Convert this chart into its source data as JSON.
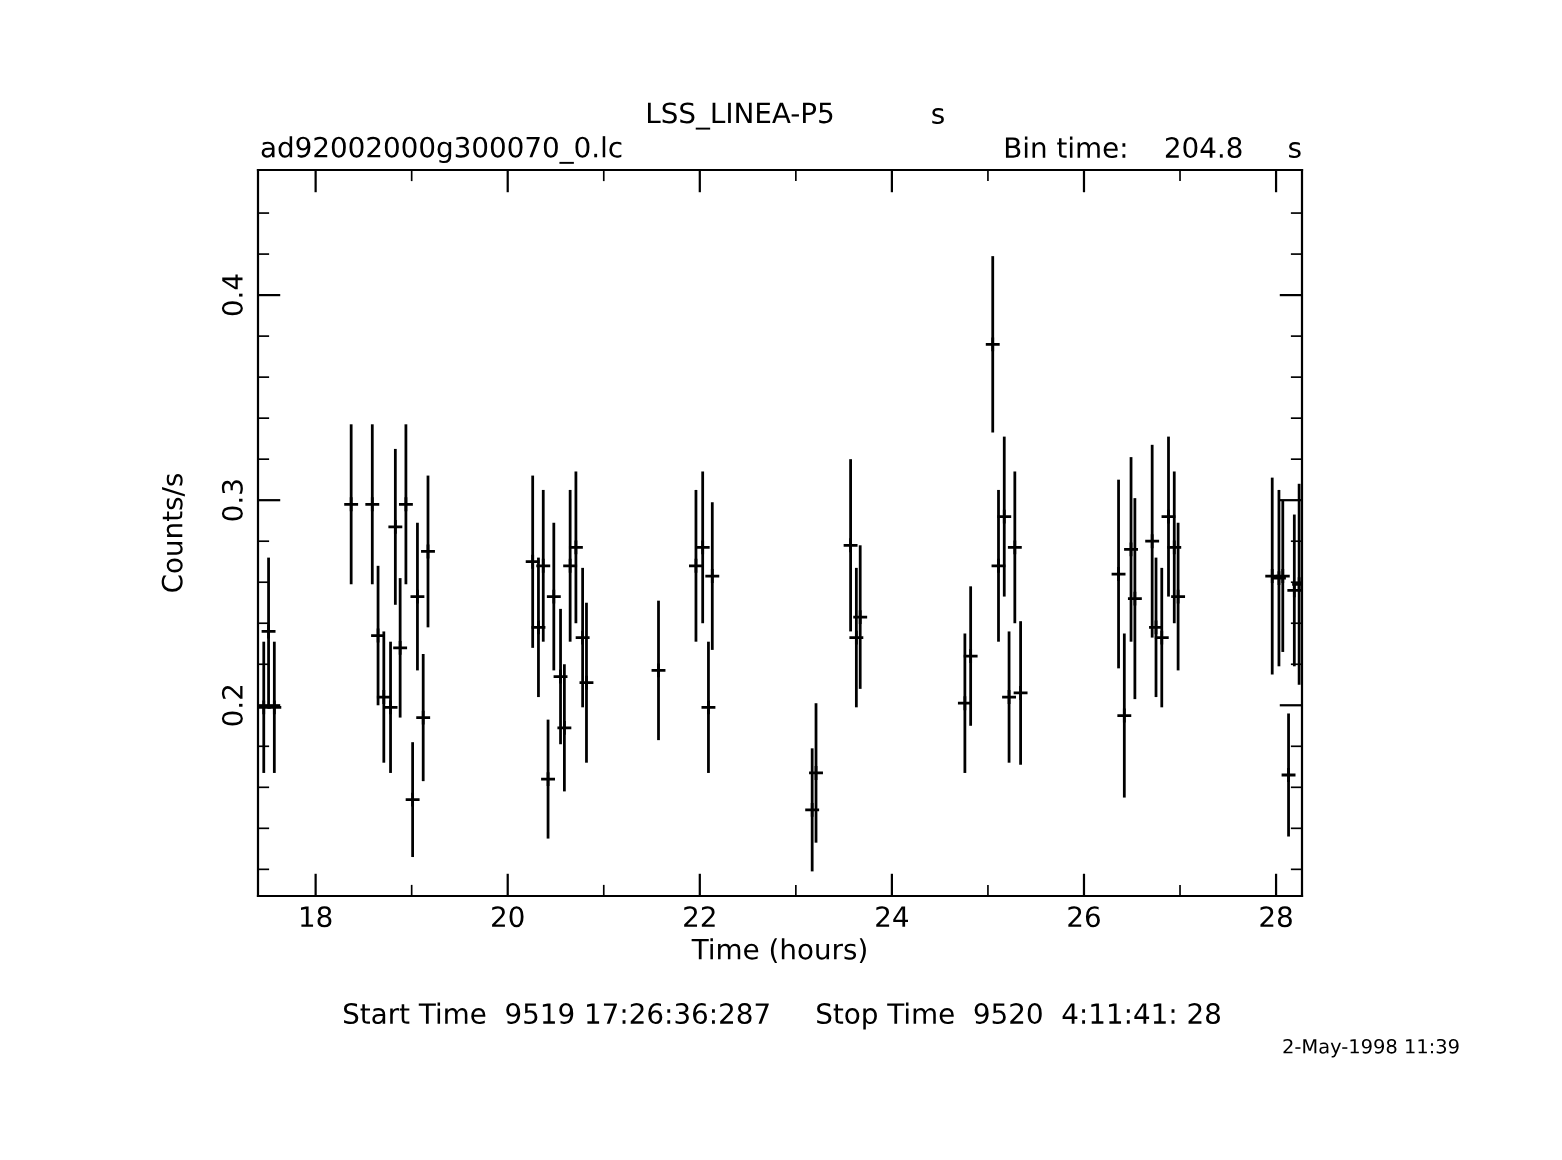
{
  "chart_data": {
    "type": "scatter",
    "title": "LSS_LINEA-P5",
    "xlabel": "Time (hours)",
    "ylabel": "Counts/s",
    "annotations": [
      "s",
      "ad92002000g300070_0.lc",
      "Bin time:    204.8     s",
      "Start Time  9519 17:26:36:287     Stop Time  9520  4:11:41: 28",
      "2-May-1998 11:39"
    ],
    "marker": "cross",
    "grid": false,
    "color": "#000000",
    "xlim": [
      17.4,
      28.27
    ],
    "ylim": [
      0.107,
      0.461
    ],
    "xticks": [
      18,
      {
        "value": 19,
        "label": null
      },
      20,
      {
        "value": 21,
        "label": null
      },
      22,
      {
        "value": 23,
        "label": null
      },
      24,
      {
        "value": 25,
        "label": null
      },
      26,
      {
        "value": 27,
        "label": null
      },
      28
    ],
    "yticks": [
      {
        "value": 0.12,
        "label": null
      },
      {
        "value": 0.14,
        "label": null
      },
      {
        "value": 0.16,
        "label": null
      },
      {
        "value": 0.18,
        "label": null
      },
      0.2,
      {
        "value": 0.22,
        "label": null
      },
      {
        "value": 0.24,
        "label": null
      },
      {
        "value": 0.26,
        "label": null
      },
      {
        "value": 0.28,
        "label": null
      },
      0.3,
      {
        "value": 0.32,
        "label": null
      },
      {
        "value": 0.34,
        "label": null
      },
      {
        "value": 0.36,
        "label": null
      },
      {
        "value": 0.38,
        "label": null
      },
      0.4,
      {
        "value": 0.42,
        "label": null
      },
      {
        "value": 0.44,
        "label": null
      }
    ],
    "x": [
      17.46,
      17.51,
      17.57,
      18.37,
      18.59,
      18.65,
      18.71,
      18.78,
      18.83,
      18.88,
      18.94,
      19.01,
      19.06,
      19.12,
      19.17,
      20.26,
      20.32,
      20.37,
      20.42,
      20.48,
      20.55,
      20.59,
      20.65,
      20.71,
      20.78,
      20.82,
      21.57,
      21.96,
      22.03,
      22.09,
      22.13,
      23.17,
      23.21,
      23.57,
      23.63,
      23.67,
      24.76,
      24.82,
      25.05,
      25.11,
      25.17,
      25.22,
      25.28,
      25.34,
      26.36,
      26.42,
      26.49,
      26.53,
      26.71,
      26.75,
      26.81,
      26.88,
      26.94,
      26.98,
      27.96,
      28.03,
      28.07,
      28.13,
      28.19,
      28.24
    ],
    "values": [
      0.199,
      0.236,
      0.199,
      0.298,
      0.298,
      0.234,
      0.204,
      0.199,
      0.287,
      0.228,
      0.298,
      0.154,
      0.253,
      0.194,
      0.275,
      0.27,
      0.238,
      0.268,
      0.164,
      0.253,
      0.214,
      0.189,
      0.268,
      0.277,
      0.233,
      0.211,
      0.217,
      0.268,
      0.277,
      0.199,
      0.263,
      0.149,
      0.167,
      0.278,
      0.233,
      0.243,
      0.201,
      0.224,
      0.376,
      0.268,
      0.292,
      0.204,
      0.277,
      0.206,
      0.264,
      0.195,
      0.276,
      0.252,
      0.28,
      0.238,
      0.233,
      0.292,
      0.277,
      0.253,
      0.263,
      0.262,
      0.263,
      0.166,
      0.256,
      0.259
    ],
    "errors": [
      0.032,
      0.036,
      0.032,
      0.039,
      0.039,
      0.034,
      0.032,
      0.032,
      0.038,
      0.034,
      0.039,
      0.028,
      0.036,
      0.031,
      0.037,
      0.042,
      0.034,
      0.037,
      0.029,
      0.036,
      0.033,
      0.031,
      0.037,
      0.037,
      0.034,
      0.039,
      0.034,
      0.037,
      0.037,
      0.032,
      0.036,
      0.03,
      0.034,
      0.042,
      0.034,
      0.035,
      0.034,
      0.034,
      0.043,
      0.037,
      0.039,
      0.032,
      0.037,
      0.035,
      0.046,
      0.04,
      0.045,
      0.049,
      0.047,
      0.034,
      0.034,
      0.039,
      0.037,
      0.036,
      0.048,
      0.043,
      0.037,
      0.03,
      0.037,
      0.049
    ]
  }
}
